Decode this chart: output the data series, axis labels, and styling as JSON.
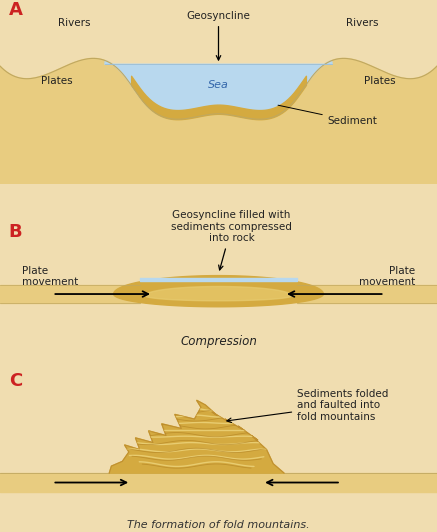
{
  "bg_color": "#f0ddb0",
  "outer_bg": "#f0ddb0",
  "white_bg": "#ffffff",
  "sea_color": "#b8d8ee",
  "sea_edge_color": "#9bbdd4",
  "sediment_gold": "#d4aa40",
  "sediment_light": "#e8cc70",
  "sediment_dark": "#c09030",
  "plate_color": "#e8cc80",
  "plate_edge": "#c0a860",
  "label_color": "#cc2222",
  "text_color": "#222222",
  "title": "The formation of fold mountains.",
  "panel_A": {
    "geosyncline": "Geosyncline",
    "rivers_left": "Rivers",
    "rivers_right": "Rivers",
    "plates_left": "Plates",
    "plates_right": "Plates",
    "sea": "Sea",
    "sediment": "Sediment"
  },
  "panel_B": {
    "annotation": "Geosyncline filled with\nsediments compressed\ninto rock",
    "plate_left": "Plate\nmovement",
    "plate_right": "Plate\nmovement",
    "compression": "Compression"
  },
  "panel_C": {
    "annotation": "Sediments folded\nand faulted into\nfold mountains"
  }
}
